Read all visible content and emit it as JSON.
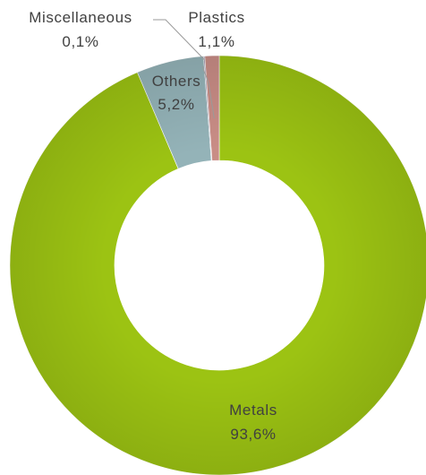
{
  "chart_data": {
    "type": "pie",
    "variant": "donut",
    "title": "",
    "categories": [
      "Metals",
      "Others",
      "Miscellaneous",
      "Plastics"
    ],
    "values": [
      93.6,
      5.2,
      0.1,
      1.1
    ],
    "unit": "%",
    "slices": [
      {
        "name": "Metals",
        "value": 93.6,
        "label": "Metals",
        "value_label": "93,6%",
        "color": "#9cc313"
      },
      {
        "name": "Others",
        "value": 5.2,
        "label": "Others",
        "value_label": "5,2%",
        "color": "#94b3b8"
      },
      {
        "name": "Miscellaneous",
        "value": 0.1,
        "label": "Miscellaneous",
        "value_label": "0,1%",
        "color": "#9b8fa8"
      },
      {
        "name": "Plastics",
        "value": 1.1,
        "label": "Plastics",
        "value_label": "1,1%",
        "color": "#c98d86"
      }
    ],
    "legend": "none",
    "label_color": "#404040",
    "leader_line_color": "#9a9a9a"
  }
}
